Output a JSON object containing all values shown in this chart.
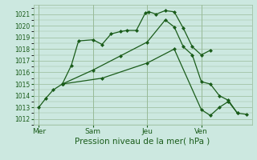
{
  "bg_color": "#cce8e0",
  "grid_color": "#99bb99",
  "line_color": "#1a5c1a",
  "marker_color": "#1a5c1a",
  "xlabel": "Pression niveau de la mer( hPa )",
  "ylim": [
    1011.5,
    1021.8
  ],
  "yticks": [
    1012,
    1013,
    1014,
    1015,
    1016,
    1017,
    1018,
    1019,
    1020,
    1021
  ],
  "day_labels": [
    "Mer",
    "Sam",
    "Jeu",
    "Ven"
  ],
  "vline_positions": [
    0.0,
    3.0,
    6.0,
    9.0
  ],
  "xlim": [
    -0.3,
    11.8
  ],
  "series": [
    {
      "x": [
        0.0,
        0.4,
        0.8,
        1.3
      ],
      "y": [
        1013.0,
        1013.8,
        1014.5,
        1015.0
      ]
    },
    {
      "x": [
        1.3,
        1.8,
        2.2,
        3.0,
        3.5,
        4.0,
        4.5,
        4.9,
        5.4,
        5.9,
        6.1,
        6.5,
        7.0,
        7.5,
        8.0,
        8.5,
        9.0,
        9.5
      ],
      "y": [
        1015.0,
        1016.6,
        1018.7,
        1018.8,
        1018.4,
        1019.3,
        1019.5,
        1019.6,
        1019.6,
        1021.1,
        1021.2,
        1021.0,
        1021.3,
        1021.2,
        1019.8,
        1018.2,
        1017.5,
        1017.9
      ]
    },
    {
      "x": [
        1.3,
        3.0,
        4.5,
        6.0,
        7.0,
        7.5,
        8.0,
        8.5,
        9.0,
        9.5,
        10.0,
        10.5,
        11.0
      ],
      "y": [
        1015.0,
        1016.2,
        1017.4,
        1018.6,
        1020.5,
        1019.9,
        1018.2,
        1017.5,
        1015.2,
        1015.0,
        1014.0,
        1013.6,
        1012.5
      ]
    },
    {
      "x": [
        1.3,
        3.5,
        6.0,
        7.5,
        9.0,
        9.5,
        10.0,
        10.5,
        11.0,
        11.5
      ],
      "y": [
        1015.0,
        1015.5,
        1016.8,
        1018.0,
        1012.8,
        1012.3,
        1013.0,
        1013.5,
        1012.5,
        1012.4
      ]
    }
  ]
}
